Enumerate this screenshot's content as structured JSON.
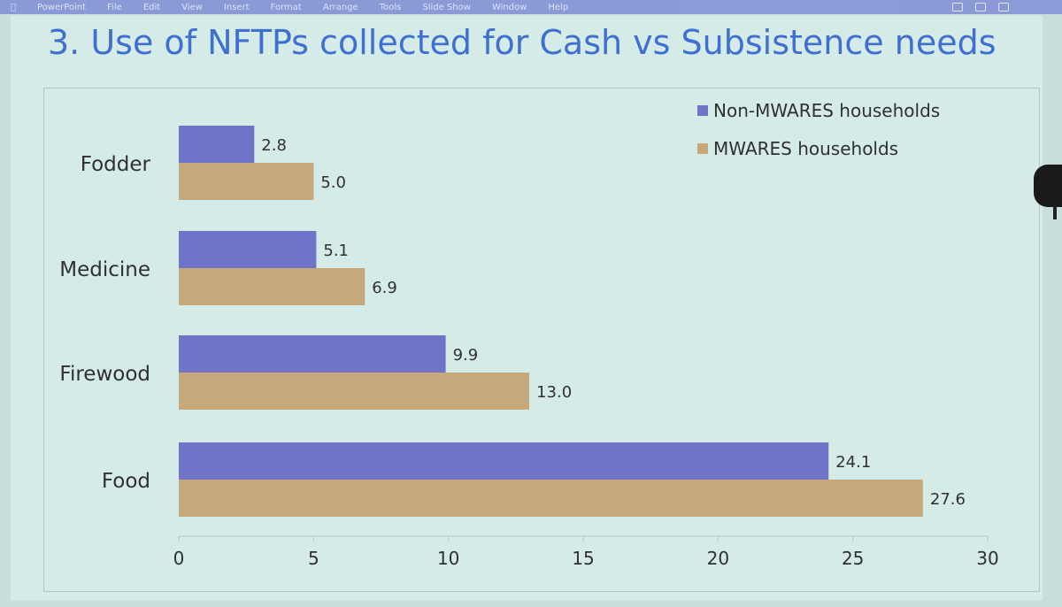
{
  "menubar": {
    "items": [
      "PowerPoint",
      "File",
      "Edit",
      "View",
      "Insert",
      "Format",
      "Arrange",
      "Tools",
      "Slide Show",
      "Window",
      "Help"
    ]
  },
  "slide": {
    "title": "3. Use of NFTPs collected for Cash vs Subsistence needs"
  },
  "chart_data": {
    "type": "bar",
    "orientation": "horizontal",
    "categories": [
      "Fodder",
      "Medicine",
      "Firewood",
      "Food"
    ],
    "series": [
      {
        "name": "Non-MWARES households",
        "values": [
          2.8,
          5.1,
          9.9,
          24.1
        ],
        "color": "#7074c6"
      },
      {
        "name": "MWARES households",
        "values": [
          5.0,
          6.9,
          13.0,
          27.6
        ],
        "color": "#c7a87b"
      }
    ],
    "data_labels": [
      [
        "2.8",
        "5.1",
        "9.9",
        "24.1"
      ],
      [
        "5.0",
        "6.9",
        "13.0",
        "27.6"
      ]
    ],
    "xlim": [
      0,
      30
    ],
    "xticks": [
      0,
      5,
      10,
      15,
      20,
      25,
      30
    ],
    "xtick_labels": [
      "0",
      "5",
      "10",
      "15",
      "20",
      "25",
      "30"
    ],
    "grid": false,
    "legend_position": "top-right",
    "title": "3. Use of NFTPs collected for Cash vs Subsistence needs"
  }
}
